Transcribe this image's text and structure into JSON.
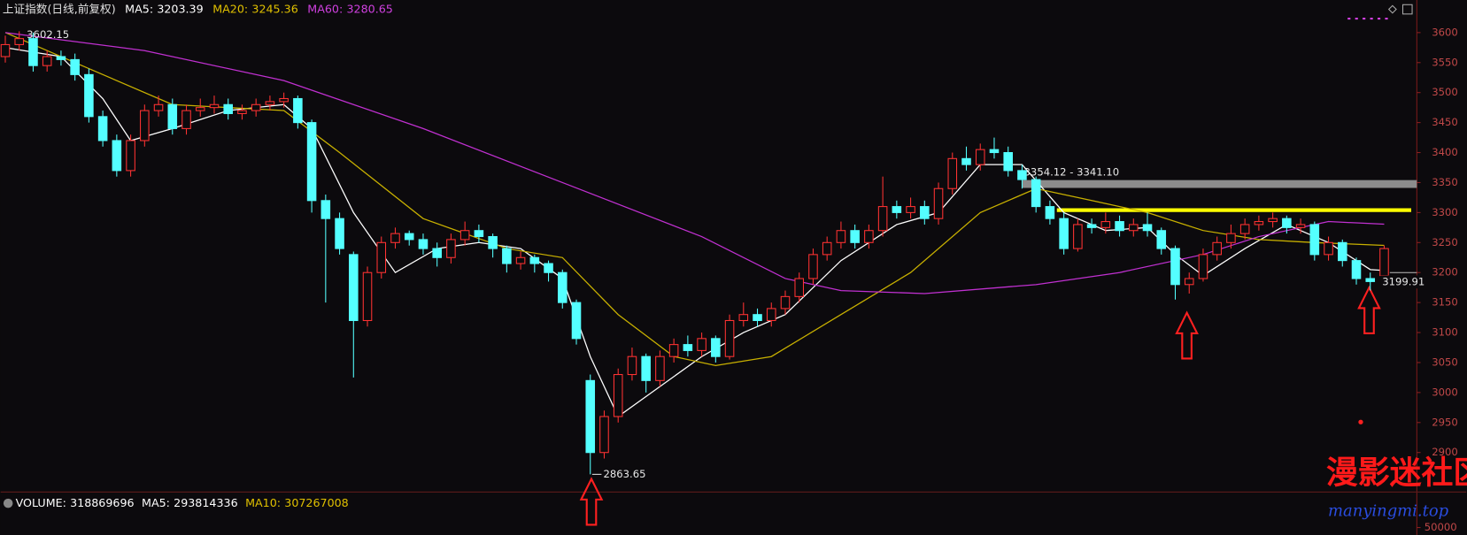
{
  "chart_data": {
    "type": "candlestick",
    "title": "上证指数(日线,前复权)",
    "indicators": [
      {
        "label": "MA5:",
        "value": 3203.39,
        "color": "#ffffff"
      },
      {
        "label": "MA20:",
        "value": 3245.36,
        "color": "#e0c000"
      },
      {
        "label": "MA60:",
        "value": 3280.65,
        "color": "#d040e0"
      }
    ],
    "up_color": "#ff3232",
    "down_color": "#54ffff",
    "open": [
      3560,
      3580,
      3590,
      3545,
      3560,
      3555,
      3530,
      3460,
      3420,
      3370,
      3420,
      3470,
      3480,
      3440,
      3470,
      3475,
      3480,
      3465,
      3470,
      3480,
      3485,
      3490,
      3450,
      3320,
      3290,
      3230,
      3120,
      3200,
      3250,
      3265,
      3255,
      3240,
      3225,
      3255,
      3270,
      3260,
      3240,
      3215,
      3225,
      3215,
      3200,
      3150,
      3020,
      2900,
      2960,
      3030,
      3060,
      3020,
      3060,
      3080,
      3070,
      3090,
      3060,
      3120,
      3130,
      3120,
      3140,
      3160,
      3190,
      3230,
      3250,
      3270,
      3250,
      3270,
      3310,
      3300,
      3310,
      3290,
      3340,
      3390,
      3380,
      3405,
      3400,
      3370,
      3355,
      3310,
      3290,
      3240,
      3280,
      3275,
      3285,
      3270,
      3280,
      3270,
      3240,
      3180,
      3190,
      3230,
      3250,
      3265,
      3280,
      3285,
      3290,
      3275,
      3280,
      3230,
      3250,
      3220,
      3190,
      3195
    ],
    "high": [
      3595,
      3602.15,
      3600,
      3570,
      3570,
      3565,
      3540,
      3470,
      3430,
      3430,
      3480,
      3495,
      3490,
      3480,
      3490,
      3495,
      3490,
      3480,
      3490,
      3495,
      3500,
      3495,
      3455,
      3330,
      3300,
      3235,
      3210,
      3260,
      3275,
      3270,
      3265,
      3250,
      3265,
      3285,
      3280,
      3265,
      3245,
      3235,
      3230,
      3220,
      3205,
      3155,
      3030,
      2970,
      3040,
      3075,
      3065,
      3070,
      3090,
      3095,
      3100,
      3095,
      3130,
      3150,
      3140,
      3150,
      3170,
      3200,
      3240,
      3260,
      3285,
      3280,
      3280,
      3360,
      3320,
      3325,
      3320,
      3350,
      3400,
      3410,
      3415,
      3425,
      3410,
      3380,
      3360,
      3320,
      3300,
      3290,
      3290,
      3300,
      3295,
      3290,
      3300,
      3275,
      3245,
      3200,
      3240,
      3260,
      3280,
      3290,
      3295,
      3300,
      3295,
      3290,
      3285,
      3260,
      3255,
      3225,
      3200,
      3245
    ],
    "low": [
      3550,
      3570,
      3535,
      3535,
      3545,
      3520,
      3450,
      3410,
      3360,
      3360,
      3410,
      3460,
      3430,
      3430,
      3460,
      3465,
      3455,
      3455,
      3460,
      3470,
      3475,
      3440,
      3300,
      3150,
      3230,
      3025,
      3110,
      3190,
      3240,
      3245,
      3230,
      3210,
      3215,
      3245,
      3250,
      3225,
      3200,
      3205,
      3200,
      3185,
      3140,
      3080,
      2863.65,
      2890,
      2950,
      3020,
      3000,
      3010,
      3050,
      3060,
      3060,
      3050,
      3055,
      3110,
      3110,
      3110,
      3130,
      3150,
      3180,
      3220,
      3240,
      3240,
      3240,
      3260,
      3290,
      3290,
      3280,
      3280,
      3330,
      3370,
      3370,
      3390,
      3360,
      3340,
      3300,
      3280,
      3230,
      3235,
      3265,
      3265,
      3260,
      3260,
      3260,
      3230,
      3155,
      3165,
      3185,
      3220,
      3240,
      3255,
      3270,
      3275,
      3265,
      3265,
      3220,
      3220,
      3210,
      3180,
      3170,
      3185
    ],
    "close": [
      3580,
      3590,
      3545,
      3560,
      3555,
      3530,
      3460,
      3420,
      3370,
      3420,
      3470,
      3480,
      3440,
      3470,
      3475,
      3480,
      3465,
      3470,
      3480,
      3485,
      3490,
      3450,
      3320,
      3290,
      3240,
      3120,
      3200,
      3250,
      3265,
      3255,
      3240,
      3225,
      3255,
      3270,
      3260,
      3240,
      3215,
      3225,
      3215,
      3200,
      3150,
      3090,
      2900,
      2960,
      3030,
      3060,
      3020,
      3060,
      3080,
      3070,
      3090,
      3060,
      3120,
      3130,
      3120,
      3140,
      3160,
      3190,
      3230,
      3250,
      3270,
      3250,
      3270,
      3310,
      3300,
      3310,
      3290,
      3340,
      3390,
      3380,
      3405,
      3400,
      3370,
      3355,
      3310,
      3290,
      3240,
      3280,
      3275,
      3285,
      3270,
      3280,
      3270,
      3240,
      3180,
      3190,
      3230,
      3250,
      3265,
      3280,
      3285,
      3290,
      3275,
      3280,
      3230,
      3250,
      3220,
      3190,
      3185,
      3240
    ],
    "series": [
      {
        "name": "MA5",
        "color": "#ffffff",
        "x": [
          0,
          4,
          7,
          9,
          12,
          16,
          20,
          22,
          25,
          28,
          31,
          34,
          37,
          40,
          42,
          44,
          47,
          50,
          53,
          56,
          60,
          64,
          67,
          70,
          73,
          76,
          79,
          82,
          84,
          86,
          89,
          92,
          95,
          98,
          99
        ],
        "values": [
          3575,
          3560,
          3490,
          3420,
          3440,
          3470,
          3480,
          3440,
          3300,
          3200,
          3240,
          3250,
          3240,
          3190,
          3060,
          2960,
          3010,
          3060,
          3100,
          3130,
          3220,
          3280,
          3300,
          3380,
          3380,
          3300,
          3270,
          3275,
          3230,
          3195,
          3240,
          3280,
          3250,
          3205,
          3203.39
        ]
      },
      {
        "name": "MA20",
        "color": "#c8b000",
        "x": [
          0,
          6,
          12,
          20,
          24,
          30,
          36,
          40,
          44,
          48,
          51,
          55,
          60,
          65,
          70,
          74,
          78,
          82,
          86,
          90,
          94,
          99
        ],
        "values": [
          3600,
          3540,
          3480,
          3470,
          3400,
          3290,
          3240,
          3225,
          3130,
          3060,
          3045,
          3060,
          3130,
          3200,
          3300,
          3340,
          3320,
          3300,
          3270,
          3255,
          3250,
          3245.36
        ]
      },
      {
        "name": "MA60",
        "color": "#c030d0",
        "x": [
          0,
          10,
          20,
          30,
          40,
          50,
          56,
          60,
          66,
          74,
          80,
          86,
          90,
          95,
          99
        ],
        "values": [
          3600,
          3570,
          3520,
          3440,
          3350,
          3260,
          3190,
          3170,
          3165,
          3180,
          3200,
          3230,
          3260,
          3285,
          3280.65
        ]
      }
    ],
    "ylim": [
      2845,
      3631
    ],
    "yticks": [
      2900,
      2950,
      3000,
      3050,
      3100,
      3150,
      3200,
      3250,
      3300,
      3350,
      3400,
      3450,
      3500,
      3550,
      3600
    ],
    "zone": {
      "from": 3341.1,
      "to": 3354.12,
      "label": "3354.12 - 3341.10",
      "color": "#8c8c8c"
    },
    "level_line": {
      "value": 3304,
      "color": "#ffff00"
    },
    "last_price": 3199.91,
    "volume": {
      "indicators": [
        {
          "label": "VOLUME:",
          "value": 318869696,
          "color": "#ffffff"
        },
        {
          "label": "MA5:",
          "value": 293814336,
          "color": "#ffffff"
        },
        {
          "label": "MA10:",
          "value": 307267008,
          "color": "#e0c000"
        }
      ],
      "yticks": [
        50000
      ]
    },
    "watermark": {
      "title": "漫影迷社区",
      "url": "manyingmi.top"
    }
  }
}
